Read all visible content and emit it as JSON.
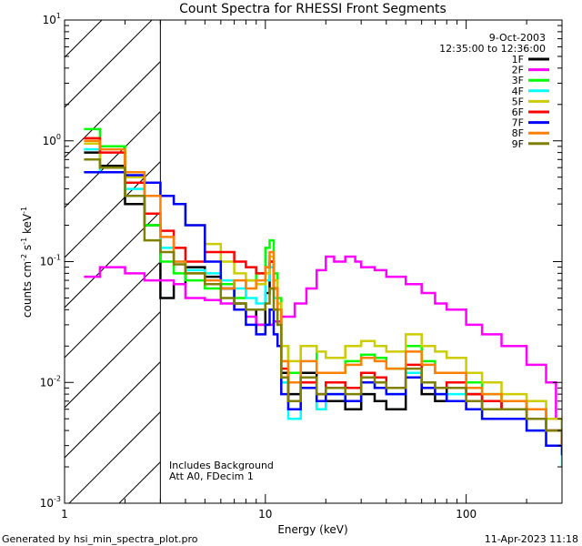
{
  "chart_data": {
    "type": "line",
    "title": "Count Spectra for RHESSI Front Segments",
    "xlabel": "Energy (keV)",
    "ylabel": "counts cm",
    "ylabel_sup1": "-2",
    "ylabel_mid": " s",
    "ylabel_sup2": "-1",
    "ylabel_unit": " keV",
    "ylabel_sup3": "-1",
    "x_scale": "log",
    "y_scale": "log",
    "xlim": [
      1,
      300
    ],
    "ylim": [
      0.001,
      10
    ],
    "x_ticks": [
      {
        "value": 1,
        "label": "1"
      },
      {
        "value": 10,
        "label": "10"
      },
      {
        "value": 100,
        "label": "100"
      }
    ],
    "y_ticks": [
      {
        "value": 0.001,
        "base": "10",
        "exp": "-3"
      },
      {
        "value": 0.01,
        "base": "10",
        "exp": "-2"
      },
      {
        "value": 0.1,
        "base": "10",
        "exp": "-1"
      },
      {
        "value": 1,
        "base": "10",
        "exp": "0"
      },
      {
        "value": 10,
        "base": "10",
        "exp": "1"
      }
    ],
    "attenuated_region_xmax": 3,
    "date": "9-Oct-2003",
    "time_range": "12:35:00 to 12:36:00",
    "annotations": [
      "Includes Background",
      "Att A0, FDecim 1"
    ],
    "legend_position": "top-right",
    "footer_left": "Generated by hsi_min_spectra_plot.pro",
    "footer_right": "11-Apr-2023 11:18",
    "series": [
      {
        "name": "1F",
        "color": "#000000",
        "x": [
          1.25,
          1.5,
          2,
          2.5,
          3,
          3.5,
          4,
          5,
          6,
          7,
          8,
          9,
          10,
          10.5,
          11,
          11.5,
          12,
          13,
          15,
          18,
          20,
          25,
          30,
          35,
          40,
          50,
          60,
          70,
          80,
          100,
          120,
          150,
          200,
          250,
          300
        ],
        "y": [
          0.8,
          0.62,
          0.3,
          0.2,
          0.05,
          0.065,
          0.09,
          0.075,
          0.06,
          0.045,
          0.04,
          0.03,
          0.055,
          0.1,
          0.06,
          0.04,
          0.012,
          0.008,
          0.012,
          0.006,
          0.007,
          0.006,
          0.008,
          0.007,
          0.006,
          0.012,
          0.008,
          0.007,
          0.009,
          0.008,
          0.006,
          0.007,
          0.006,
          0.004,
          0.003
        ]
      },
      {
        "name": "2F",
        "color": "#ff00ff",
        "x": [
          1.25,
          1.5,
          2,
          2.5,
          3,
          3.5,
          4,
          5,
          6,
          7,
          8,
          9,
          10,
          11,
          12,
          14,
          16,
          18,
          20,
          22,
          25,
          28,
          30,
          35,
          40,
          50,
          60,
          70,
          80,
          100,
          120,
          150,
          200,
          250,
          280,
          300
        ],
        "y": [
          0.075,
          0.09,
          0.08,
          0.07,
          0.07,
          0.065,
          0.05,
          0.048,
          0.045,
          0.04,
          0.035,
          0.03,
          0.03,
          0.032,
          0.035,
          0.045,
          0.06,
          0.085,
          0.11,
          0.1,
          0.11,
          0.1,
          0.09,
          0.085,
          0.075,
          0.065,
          0.055,
          0.045,
          0.04,
          0.03,
          0.025,
          0.02,
          0.014,
          0.01,
          0.005,
          0.004
        ]
      },
      {
        "name": "3F",
        "color": "#00ff00",
        "x": [
          1.25,
          1.5,
          2,
          2.5,
          3,
          3.5,
          4,
          5,
          6,
          7,
          8,
          9,
          10,
          10.5,
          11,
          11.5,
          12,
          13,
          15,
          18,
          20,
          25,
          30,
          35,
          40,
          50,
          60,
          70,
          80,
          100,
          120,
          150,
          200,
          250,
          300
        ],
        "y": [
          1.25,
          0.9,
          0.55,
          0.2,
          0.1,
          0.08,
          0.07,
          0.06,
          0.065,
          0.05,
          0.07,
          0.08,
          0.13,
          0.15,
          0.08,
          0.05,
          0.02,
          0.012,
          0.02,
          0.012,
          0.012,
          0.015,
          0.017,
          0.016,
          0.013,
          0.02,
          0.015,
          0.012,
          0.012,
          0.01,
          0.008,
          0.007,
          0.006,
          0.005,
          0.0035
        ]
      },
      {
        "name": "4F",
        "color": "#00ffff",
        "x": [
          1.25,
          1.5,
          2,
          2.5,
          3,
          3.5,
          4,
          5,
          6,
          7,
          8,
          9,
          10,
          10.5,
          11,
          11.5,
          12,
          13,
          15,
          18,
          20,
          25,
          30,
          35,
          40,
          50,
          60,
          70,
          80,
          100,
          120,
          150,
          200,
          250,
          300
        ],
        "y": [
          0.85,
          0.55,
          0.4,
          0.25,
          0.13,
          0.1,
          0.085,
          0.08,
          0.07,
          0.06,
          0.05,
          0.045,
          0.07,
          0.09,
          0.05,
          0.03,
          0.01,
          0.005,
          0.01,
          0.006,
          0.008,
          0.007,
          0.01,
          0.009,
          0.008,
          0.012,
          0.01,
          0.008,
          0.008,
          0.006,
          0.005,
          0.005,
          0.004,
          0.003,
          0.002
        ]
      },
      {
        "name": "5F",
        "color": "#cccc00",
        "x": [
          1.25,
          1.5,
          2,
          2.5,
          3,
          3.5,
          4,
          5,
          6,
          7,
          8,
          9,
          10,
          10.5,
          11,
          11.5,
          12,
          13,
          15,
          18,
          20,
          25,
          30,
          35,
          40,
          50,
          60,
          70,
          80,
          100,
          120,
          150,
          200,
          250,
          300
        ],
        "y": [
          0.95,
          0.6,
          0.5,
          0.45,
          0.35,
          0.3,
          0.2,
          0.14,
          0.1,
          0.08,
          0.07,
          0.065,
          0.08,
          0.11,
          0.07,
          0.045,
          0.02,
          0.015,
          0.02,
          0.018,
          0.016,
          0.02,
          0.022,
          0.02,
          0.018,
          0.025,
          0.02,
          0.018,
          0.016,
          0.012,
          0.01,
          0.008,
          0.007,
          0.005,
          0.004
        ]
      },
      {
        "name": "6F",
        "color": "#ff0000",
        "x": [
          1.25,
          1.5,
          2,
          2.5,
          3,
          3.5,
          4,
          5,
          6,
          7,
          8,
          9,
          10,
          10.5,
          11,
          11.5,
          12,
          13,
          15,
          18,
          20,
          25,
          30,
          35,
          40,
          50,
          60,
          70,
          80,
          100,
          120,
          150,
          200,
          250,
          300
        ],
        "y": [
          1.05,
          0.8,
          0.45,
          0.25,
          0.18,
          0.13,
          0.1,
          0.12,
          0.12,
          0.1,
          0.09,
          0.08,
          0.09,
          0.1,
          0.06,
          0.04,
          0.013,
          0.007,
          0.01,
          0.008,
          0.01,
          0.009,
          0.012,
          0.011,
          0.009,
          0.014,
          0.01,
          0.009,
          0.01,
          0.008,
          0.007,
          0.006,
          0.005,
          0.004,
          0.003
        ]
      },
      {
        "name": "7F",
        "color": "#0000ff",
        "x": [
          1.25,
          1.5,
          2,
          2.5,
          3,
          3.5,
          4,
          5,
          6,
          7,
          8,
          9,
          10,
          10.5,
          11,
          11.5,
          12,
          13,
          15,
          18,
          20,
          25,
          30,
          35,
          40,
          50,
          60,
          70,
          80,
          100,
          120,
          150,
          200,
          250,
          300
        ],
        "y": [
          0.55,
          0.55,
          0.52,
          0.45,
          0.35,
          0.3,
          0.2,
          0.1,
          0.06,
          0.04,
          0.03,
          0.025,
          0.03,
          0.04,
          0.025,
          0.02,
          0.008,
          0.006,
          0.009,
          0.007,
          0.008,
          0.007,
          0.01,
          0.009,
          0.008,
          0.011,
          0.009,
          0.008,
          0.007,
          0.006,
          0.005,
          0.005,
          0.004,
          0.003,
          0.0025
        ]
      },
      {
        "name": "8F",
        "color": "#ff8000",
        "x": [
          1.25,
          1.5,
          2,
          2.5,
          3,
          3.5,
          4,
          5,
          6,
          7,
          8,
          9,
          10,
          10.5,
          11,
          11.5,
          12,
          13,
          15,
          18,
          20,
          25,
          30,
          35,
          40,
          50,
          60,
          70,
          80,
          100,
          120,
          150,
          200,
          250,
          300
        ],
        "y": [
          1.0,
          0.85,
          0.55,
          0.35,
          0.16,
          0.1,
          0.08,
          0.07,
          0.06,
          0.07,
          0.06,
          0.07,
          0.09,
          0.12,
          0.06,
          0.04,
          0.015,
          0.01,
          0.015,
          0.012,
          0.012,
          0.014,
          0.016,
          0.015,
          0.013,
          0.018,
          0.014,
          0.012,
          0.012,
          0.009,
          0.008,
          0.007,
          0.006,
          0.004,
          0.003
        ]
      },
      {
        "name": "9F",
        "color": "#808000",
        "x": [
          1.25,
          1.5,
          2,
          2.5,
          3,
          3.5,
          4,
          5,
          6,
          7,
          8,
          9,
          10,
          10.5,
          11,
          11.5,
          12,
          13,
          15,
          18,
          20,
          25,
          30,
          35,
          40,
          50,
          60,
          70,
          80,
          100,
          120,
          150,
          200,
          250,
          300
        ],
        "y": [
          0.7,
          0.6,
          0.35,
          0.15,
          0.12,
          0.095,
          0.08,
          0.065,
          0.05,
          0.045,
          0.04,
          0.04,
          0.045,
          0.06,
          0.04,
          0.03,
          0.011,
          0.007,
          0.011,
          0.008,
          0.009,
          0.008,
          0.011,
          0.01,
          0.009,
          0.013,
          0.01,
          0.009,
          0.009,
          0.007,
          0.006,
          0.006,
          0.005,
          0.004,
          0.003
        ]
      }
    ]
  }
}
